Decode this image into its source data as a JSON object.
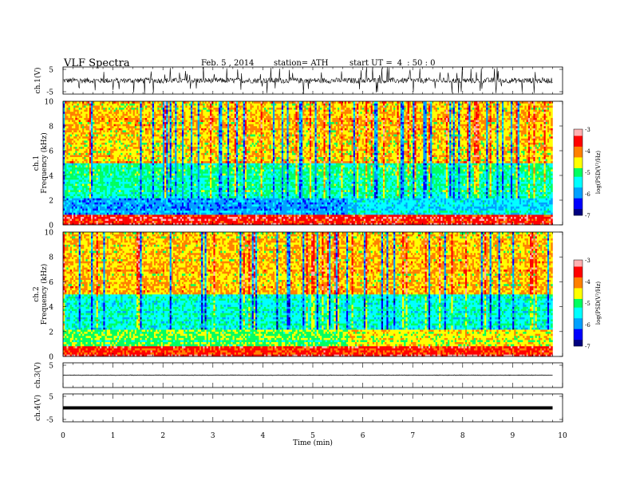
{
  "header": {
    "title": "VLF  Spectra",
    "date": "Feb. 5  , 2014",
    "station": "station= ATH",
    "start_label": "start  UT  =",
    "start_h": "4",
    "start_ms": ": 50 : 0"
  },
  "colors": {
    "waveform": "#000000",
    "colormap": [
      "#000080",
      "#0000ff",
      "#00a0ff",
      "#00ffff",
      "#00ff60",
      "#ffff00",
      "#ff8000",
      "#ff0000",
      "#ffb0b0"
    ]
  },
  "chart_data": [
    {
      "type": "line",
      "panel": "ch1_waveform",
      "ylabel": "ch.1(V)",
      "ylim": [
        -5,
        5
      ],
      "yticks": [
        "5",
        "-5"
      ],
      "xlim": [
        0,
        10
      ],
      "baseline": 0,
      "noise_amplitude": 1
    },
    {
      "type": "heatmap",
      "panel": "ch1_spectrogram",
      "ylabel": "ch.1\nFrequency  (kHz)",
      "ylim": [
        0,
        10
      ],
      "yticks": [
        "0",
        "2",
        "4",
        "6",
        "8",
        "10"
      ],
      "xlim": [
        0,
        9.8
      ],
      "colorbar": {
        "label": "log(PSD(V²/Hz)",
        "range": [
          -7,
          -3
        ],
        "ticks": [
          "-3",
          "-4",
          "-5",
          "-6",
          "-7"
        ]
      }
    },
    {
      "type": "heatmap",
      "panel": "ch2_spectrogram",
      "ylabel": "ch.2\nFrequency  (kHz)",
      "ylim": [
        0,
        10
      ],
      "yticks": [
        "0",
        "2",
        "4",
        "6",
        "8",
        "10"
      ],
      "xlim": [
        0,
        9.8
      ],
      "colorbar": {
        "label": "log(PSD(V²/Hz)",
        "range": [
          -7,
          -3
        ],
        "ticks": [
          "-3",
          "-4",
          "-5",
          "-6",
          "-7"
        ]
      }
    },
    {
      "type": "line",
      "panel": "ch3_waveform",
      "ylabel": "ch.3(V)",
      "ylim": [
        -5,
        5
      ],
      "yticks": [
        "5"
      ],
      "xlim": [
        0,
        10
      ],
      "baseline": 0,
      "noise_amplitude": 0.1
    },
    {
      "type": "line",
      "panel": "ch4_waveform",
      "ylabel": "ch.4(V)",
      "ylim": [
        -5,
        5
      ],
      "yticks": [
        "5",
        "-5"
      ],
      "xlim": [
        0,
        10
      ],
      "baseline": 0,
      "noise_amplitude": 0.3
    }
  ],
  "xaxis": {
    "label": "Time  (min)",
    "ticks": [
      "0",
      "1",
      "2",
      "3",
      "4",
      "5",
      "6",
      "7",
      "8",
      "9",
      "10"
    ],
    "range": [
      0,
      10
    ]
  }
}
